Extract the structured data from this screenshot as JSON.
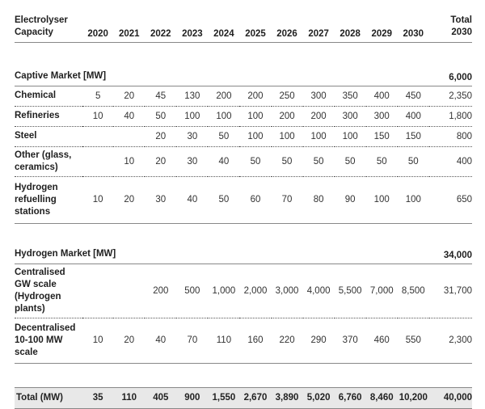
{
  "header": {
    "label": "Electrolyser Capacity",
    "years": [
      "2020",
      "2021",
      "2022",
      "2023",
      "2024",
      "2025",
      "2026",
      "2027",
      "2028",
      "2029",
      "2030"
    ],
    "total": "Total 2030"
  },
  "captive": {
    "title": "Captive Market [MW]",
    "total": "6,000",
    "rows": [
      {
        "label": "Chemical",
        "values": [
          "5",
          "20",
          "45",
          "130",
          "200",
          "200",
          "250",
          "300",
          "350",
          "400",
          "450"
        ],
        "total": "2,350"
      },
      {
        "label": "Refineries",
        "values": [
          "10",
          "40",
          "50",
          "100",
          "100",
          "100",
          "200",
          "200",
          "300",
          "300",
          "400"
        ],
        "total": "1,800"
      },
      {
        "label": "Steel",
        "values": [
          "",
          "",
          "20",
          "30",
          "50",
          "100",
          "100",
          "100",
          "100",
          "150",
          "150"
        ],
        "total": "800"
      },
      {
        "label": "Other (glass, ceramics)",
        "values": [
          "",
          "10",
          "20",
          "30",
          "40",
          "50",
          "50",
          "50",
          "50",
          "50",
          "50"
        ],
        "total": "400"
      },
      {
        "label": "Hydrogen refuelling stations",
        "values": [
          "10",
          "20",
          "30",
          "40",
          "50",
          "60",
          "70",
          "80",
          "90",
          "100",
          "100"
        ],
        "total": "650"
      }
    ]
  },
  "hydrogen": {
    "title": "Hydrogen Market [MW]",
    "total": "34,000",
    "rows": [
      {
        "label": "Centralised GW scale (Hydrogen plants)",
        "values": [
          "",
          "",
          "200",
          "500",
          "1,000",
          "2,000",
          "3,000",
          "4,000",
          "5,500",
          "7,000",
          "8,500"
        ],
        "total": "31,700"
      },
      {
        "label": "Decentralised 10-100 MW scale",
        "values": [
          "10",
          "20",
          "40",
          "70",
          "110",
          "160",
          "220",
          "290",
          "370",
          "460",
          "550"
        ],
        "total": "2,300"
      }
    ]
  },
  "grand_total": {
    "label": "Total (MW)",
    "values": [
      "35",
      "110",
      "405",
      "900",
      "1,550",
      "2,670",
      "3,890",
      "5,020",
      "6,760",
      "8,460",
      "10,200"
    ],
    "total": "40,000"
  }
}
